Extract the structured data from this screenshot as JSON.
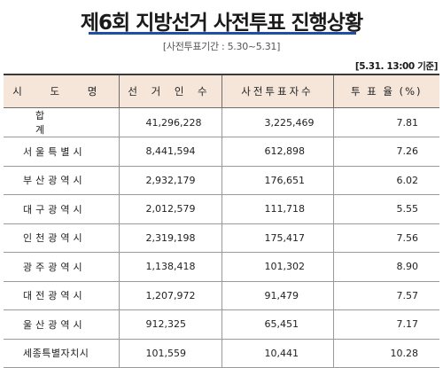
{
  "title": "제6회 지방선거 사전투표 진행상황",
  "period": "[사전투표기간 : 5.30~5.31]",
  "timestamp": "[5.31. 13:00 기준]",
  "table": {
    "headers": {
      "region": "시 도 명",
      "electors": "선 거 인 수",
      "early_voters": "사전투표자수",
      "turnout": "투 표 율 (%)"
    },
    "rows": [
      {
        "region": "합 계",
        "electors": "41,296,228",
        "early_voters": "3,225,469",
        "turnout": "7.81"
      },
      {
        "region": "서울특별시",
        "electors": "8,441,594",
        "early_voters": "612,898",
        "turnout": "7.26"
      },
      {
        "region": "부산광역시",
        "electors": "2,932,179",
        "early_voters": "176,651",
        "turnout": "6.02"
      },
      {
        "region": "대구광역시",
        "electors": "2,012,579",
        "early_voters": "111,718",
        "turnout": "5.55"
      },
      {
        "region": "인천광역시",
        "electors": "2,319,198",
        "early_voters": "175,417",
        "turnout": "7.56"
      },
      {
        "region": "광주광역시",
        "electors": "1,138,418",
        "early_voters": "101,302",
        "turnout": "8.90"
      },
      {
        "region": "대전광역시",
        "electors": "1,207,972",
        "early_voters": "91,479",
        "turnout": "7.57"
      },
      {
        "region": "울산광역시",
        "electors": "912,325",
        "early_voters": "65,451",
        "turnout": "7.17"
      },
      {
        "region": "세종특별자치시",
        "electors": "101,559",
        "early_voters": "10,441",
        "turnout": "10.28"
      }
    ]
  },
  "colors": {
    "header_bg": "#f6e6da",
    "title_underline": "#1f4fa3"
  }
}
